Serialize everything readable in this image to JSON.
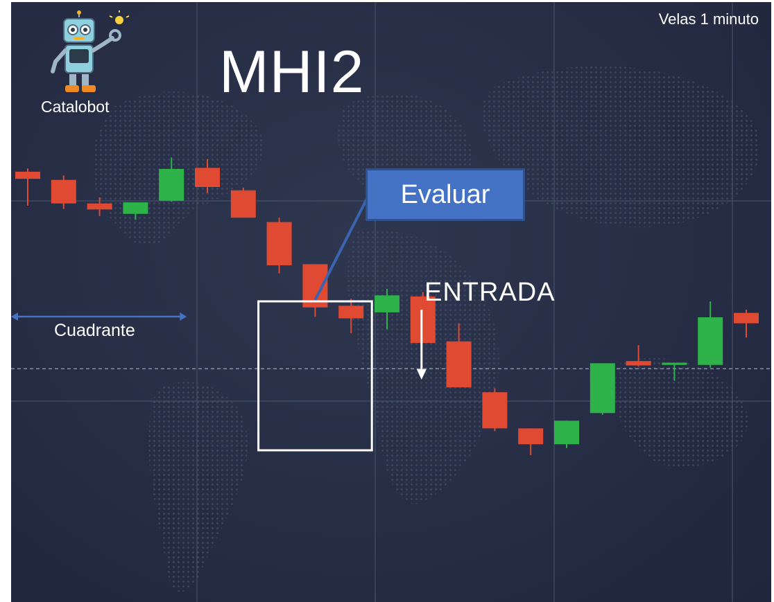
{
  "title": "MHI2",
  "timeframe_label": "Velas 1 minuto",
  "brand": {
    "name": "Catalobot",
    "icon": "robot-mascot-icon"
  },
  "annotations": {
    "evaluate_label": "Evaluar",
    "entry_label": "ENTRADA",
    "quadrant_label": "Cuadrante"
  },
  "colors": {
    "background": "#262d45",
    "bullish": "#2db34a",
    "bearish": "#e04a33",
    "callout": "#4472c4",
    "quadrant_arrow": "#4472c4",
    "highlight_frame": "#ffffff"
  },
  "chart_data": {
    "type": "candlestick",
    "title": "MHI2",
    "xlabel": "",
    "ylabel": "",
    "ylim": [
      0,
      100
    ],
    "grid": true,
    "legend": "none",
    "candles": [
      {
        "i": 0,
        "open": 76.6,
        "close": 75.3,
        "high": 77.2,
        "low": 70.4
      },
      {
        "i": 1,
        "open": 75.1,
        "close": 70.8,
        "high": 75.9,
        "low": 69.8
      },
      {
        "i": 2,
        "open": 70.8,
        "close": 69.7,
        "high": 71.9,
        "low": 68.5
      },
      {
        "i": 3,
        "open": 68.9,
        "close": 71.0,
        "high": 71.0,
        "low": 67.8
      },
      {
        "i": 4,
        "open": 71.3,
        "close": 77.1,
        "high": 79.2,
        "low": 71.1
      },
      {
        "i": 5,
        "open": 77.3,
        "close": 73.8,
        "high": 78.9,
        "low": 72.7
      },
      {
        "i": 6,
        "open": 73.2,
        "close": 68.2,
        "high": 73.7,
        "low": 68.2
      },
      {
        "i": 7,
        "open": 67.4,
        "close": 59.5,
        "high": 68.2,
        "low": 58.0
      },
      {
        "i": 8,
        "open": 59.7,
        "close": 51.8,
        "high": 59.7,
        "low": 50.1
      },
      {
        "i": 9,
        "open": 52.1,
        "close": 49.8,
        "high": 53.4,
        "low": 47.1
      },
      {
        "i": 10,
        "open": 50.9,
        "close": 54.0,
        "high": 55.2,
        "low": 47.8
      },
      {
        "i": 11,
        "open": 53.8,
        "close": 45.3,
        "high": 54.6,
        "low": 45.3
      },
      {
        "i": 12,
        "open": 45.6,
        "close": 37.2,
        "high": 48.9,
        "low": 37.2
      },
      {
        "i": 13,
        "open": 36.3,
        "close": 29.7,
        "high": 37.0,
        "low": 29.2
      },
      {
        "i": 14,
        "open": 29.7,
        "close": 26.8,
        "high": 29.7,
        "low": 24.8
      },
      {
        "i": 15,
        "open": 26.8,
        "close": 31.1,
        "high": 31.1,
        "low": 26.1
      },
      {
        "i": 16,
        "open": 32.5,
        "close": 41.6,
        "high": 41.6,
        "low": 32.2
      },
      {
        "i": 17,
        "open": 42.0,
        "close": 41.2,
        "high": 44.9,
        "low": 41.0
      },
      {
        "i": 18,
        "open": 41.3,
        "close": 41.7,
        "high": 41.7,
        "low": 38.4
      },
      {
        "i": 19,
        "open": 41.3,
        "close": 50.0,
        "high": 52.9,
        "low": 40.8
      },
      {
        "i": 20,
        "open": 50.8,
        "close": 48.9,
        "high": 51.4,
        "low": 46.3
      }
    ],
    "quadrant_range": [
      0,
      4
    ],
    "evaluated_candles": [
      7,
      9
    ],
    "entry_candle": 11,
    "reference_level": 40.6
  }
}
